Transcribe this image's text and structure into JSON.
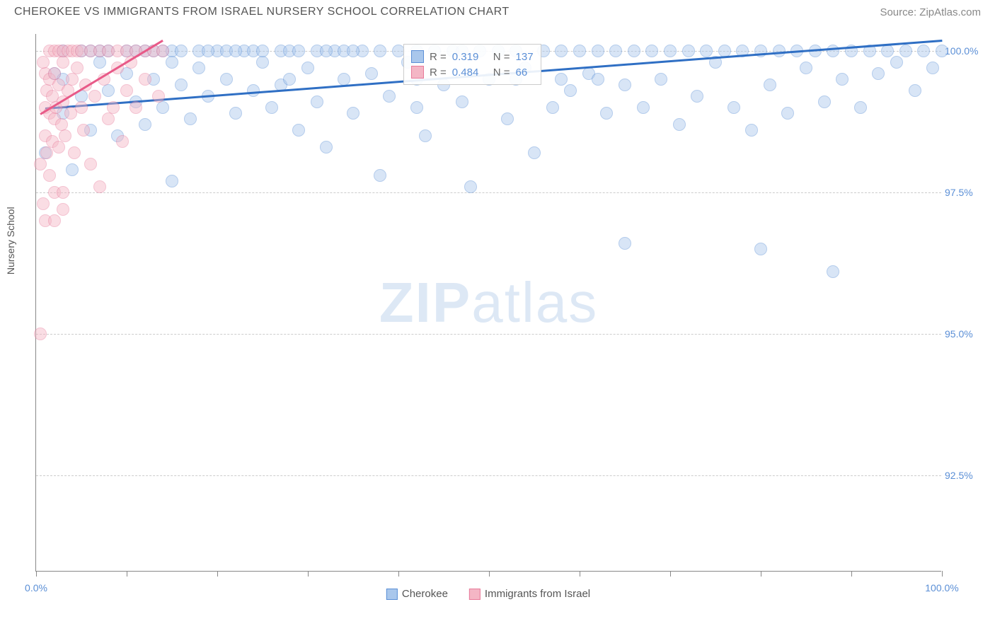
{
  "title": "CHEROKEE VS IMMIGRANTS FROM ISRAEL NURSERY SCHOOL CORRELATION CHART",
  "source": "Source: ZipAtlas.com",
  "watermark_bold": "ZIP",
  "watermark_light": "atlas",
  "y_axis_label": "Nursery School",
  "chart": {
    "type": "scatter",
    "xlim": [
      0,
      100
    ],
    "ylim": [
      90.8,
      100.3
    ],
    "ytick_values": [
      92.5,
      95.0,
      97.5,
      100.0
    ],
    "ytick_labels": [
      "92.5%",
      "95.0%",
      "97.5%",
      "100.0%"
    ],
    "xtick_positions": [
      0,
      10,
      20,
      30,
      40,
      50,
      60,
      70,
      80,
      90,
      100
    ],
    "xtick_labels": {
      "0": "0.0%",
      "100": "100.0%"
    },
    "background_color": "#ffffff",
    "grid_color": "#cccccc",
    "point_radius": 9,
    "point_stroke_width": 1.5
  },
  "series": [
    {
      "name": "Cherokee",
      "fill_color": "#a9c7ec",
      "stroke_color": "#5b8fd6",
      "fill_opacity": 0.45,
      "R": "0.319",
      "N": "137",
      "trend": {
        "x1": 1,
        "y1": 99.0,
        "x2": 100,
        "y2": 100.2,
        "color": "#2f6fc4",
        "width": 3
      },
      "points": [
        [
          1,
          98.2
        ],
        [
          2,
          99.6
        ],
        [
          3,
          98.9
        ],
        [
          3,
          100
        ],
        [
          4,
          97.9
        ],
        [
          5,
          99.2
        ],
        [
          5,
          100
        ],
        [
          6,
          98.6
        ],
        [
          7,
          99.8
        ],
        [
          7,
          100
        ],
        [
          8,
          99.3
        ],
        [
          8,
          100
        ],
        [
          9,
          98.5
        ],
        [
          10,
          99.6
        ],
        [
          10,
          100
        ],
        [
          11,
          99.1
        ],
        [
          12,
          98.7
        ],
        [
          12,
          100
        ],
        [
          13,
          99.5
        ],
        [
          13,
          100
        ],
        [
          14,
          99.0
        ],
        [
          14,
          100
        ],
        [
          15,
          97.7
        ],
        [
          15,
          100
        ],
        [
          16,
          99.4
        ],
        [
          16,
          100
        ],
        [
          17,
          98.8
        ],
        [
          18,
          99.7
        ],
        [
          18,
          100
        ],
        [
          19,
          99.2
        ],
        [
          20,
          100
        ],
        [
          21,
          99.5
        ],
        [
          21,
          100
        ],
        [
          22,
          98.9
        ],
        [
          23,
          100
        ],
        [
          24,
          99.3
        ],
        [
          24,
          100
        ],
        [
          25,
          99.8
        ],
        [
          26,
          99.0
        ],
        [
          27,
          100
        ],
        [
          27,
          99.4
        ],
        [
          28,
          100
        ],
        [
          29,
          98.6
        ],
        [
          29,
          100
        ],
        [
          30,
          99.7
        ],
        [
          31,
          99.1
        ],
        [
          31,
          100
        ],
        [
          32,
          98.3
        ],
        [
          33,
          100
        ],
        [
          34,
          99.5
        ],
        [
          34,
          100
        ],
        [
          35,
          98.9
        ],
        [
          36,
          100
        ],
        [
          37,
          99.6
        ],
        [
          38,
          97.8
        ],
        [
          38,
          100
        ],
        [
          39,
          99.2
        ],
        [
          40,
          100
        ],
        [
          41,
          99.8
        ],
        [
          42,
          99.0
        ],
        [
          42,
          100
        ],
        [
          43,
          98.5
        ],
        [
          44,
          100
        ],
        [
          45,
          99.4
        ],
        [
          46,
          100
        ],
        [
          47,
          99.1
        ],
        [
          48,
          97.6
        ],
        [
          49,
          100
        ],
        [
          50,
          99.5
        ],
        [
          51,
          100
        ],
        [
          52,
          98.8
        ],
        [
          53,
          100
        ],
        [
          54,
          99.7
        ],
        [
          55,
          98.2
        ],
        [
          56,
          100
        ],
        [
          57,
          99.0
        ],
        [
          58,
          100
        ],
        [
          59,
          99.3
        ],
        [
          60,
          100
        ],
        [
          61,
          99.6
        ],
        [
          62,
          100
        ],
        [
          63,
          98.9
        ],
        [
          64,
          100
        ],
        [
          65,
          99.4
        ],
        [
          65,
          96.6
        ],
        [
          66,
          100
        ],
        [
          67,
          99.0
        ],
        [
          68,
          100
        ],
        [
          69,
          99.5
        ],
        [
          70,
          100
        ],
        [
          71,
          98.7
        ],
        [
          72,
          100
        ],
        [
          73,
          99.2
        ],
        [
          74,
          100
        ],
        [
          75,
          99.8
        ],
        [
          76,
          100
        ],
        [
          77,
          99.0
        ],
        [
          78,
          100
        ],
        [
          79,
          98.6
        ],
        [
          80,
          100
        ],
        [
          80,
          96.5
        ],
        [
          81,
          99.4
        ],
        [
          82,
          100
        ],
        [
          83,
          98.9
        ],
        [
          84,
          100
        ],
        [
          85,
          99.7
        ],
        [
          86,
          100
        ],
        [
          87,
          99.1
        ],
        [
          88,
          100
        ],
        [
          88,
          96.1
        ],
        [
          89,
          99.5
        ],
        [
          90,
          100
        ],
        [
          91,
          99.0
        ],
        [
          92,
          100
        ],
        [
          93,
          99.6
        ],
        [
          94,
          100
        ],
        [
          95,
          99.8
        ],
        [
          96,
          100
        ],
        [
          97,
          99.3
        ],
        [
          98,
          100
        ],
        [
          99,
          99.7
        ],
        [
          100,
          100
        ],
        [
          3,
          99.5
        ],
        [
          6,
          100
        ],
        [
          11,
          100
        ],
        [
          15,
          99.8
        ],
        [
          19,
          100
        ],
        [
          22,
          100
        ],
        [
          25,
          100
        ],
        [
          28,
          99.5
        ],
        [
          32,
          100
        ],
        [
          35,
          100
        ],
        [
          42,
          99.5
        ],
        [
          47,
          100
        ],
        [
          53,
          99.5
        ],
        [
          58,
          99.5
        ],
        [
          62,
          99.5
        ]
      ]
    },
    {
      "name": "Immigrants from Israel",
      "fill_color": "#f4b6c5",
      "stroke_color": "#e87a9a",
      "fill_opacity": 0.45,
      "R": "0.484",
      "N": "66",
      "trend": {
        "x1": 0.5,
        "y1": 98.9,
        "x2": 14,
        "y2": 100.2,
        "color": "#e85a88",
        "width": 3
      },
      "points": [
        [
          0.5,
          95.0
        ],
        [
          0.5,
          98.0
        ],
        [
          0.8,
          97.3
        ],
        [
          1,
          98.5
        ],
        [
          1,
          99.0
        ],
        [
          1,
          99.6
        ],
        [
          1.2,
          98.2
        ],
        [
          1.2,
          99.3
        ],
        [
          1.5,
          97.8
        ],
        [
          1.5,
          98.9
        ],
        [
          1.5,
          99.5
        ],
        [
          1.5,
          100
        ],
        [
          1.8,
          98.4
        ],
        [
          1.8,
          99.2
        ],
        [
          2,
          97.5
        ],
        [
          2,
          98.8
        ],
        [
          2,
          99.6
        ],
        [
          2,
          100
        ],
        [
          2.2,
          99.0
        ],
        [
          2.5,
          98.3
        ],
        [
          2.5,
          99.4
        ],
        [
          2.5,
          100
        ],
        [
          2.8,
          98.7
        ],
        [
          3,
          97.2
        ],
        [
          3,
          99.1
        ],
        [
          3,
          99.8
        ],
        [
          3,
          100
        ],
        [
          3.2,
          98.5
        ],
        [
          3.5,
          99.3
        ],
        [
          3.5,
          100
        ],
        [
          3.8,
          98.9
        ],
        [
          4,
          99.5
        ],
        [
          4,
          100
        ],
        [
          4.2,
          98.2
        ],
        [
          4.5,
          99.7
        ],
        [
          4.5,
          100
        ],
        [
          5,
          99.0
        ],
        [
          5,
          100
        ],
        [
          5.2,
          98.6
        ],
        [
          5.5,
          99.4
        ],
        [
          6,
          98.0
        ],
        [
          6,
          100
        ],
        [
          6.5,
          99.2
        ],
        [
          7,
          97.6
        ],
        [
          7,
          100
        ],
        [
          7.5,
          99.5
        ],
        [
          8,
          98.8
        ],
        [
          8,
          100
        ],
        [
          8.5,
          99.0
        ],
        [
          9,
          99.7
        ],
        [
          9,
          100
        ],
        [
          9.5,
          98.4
        ],
        [
          10,
          99.3
        ],
        [
          10,
          100
        ],
        [
          10.5,
          99.8
        ],
        [
          11,
          99.0
        ],
        [
          11,
          100
        ],
        [
          12,
          99.5
        ],
        [
          12,
          100
        ],
        [
          13,
          100
        ],
        [
          13.5,
          99.2
        ],
        [
          14,
          100
        ],
        [
          1,
          97.0
        ],
        [
          2,
          97.0
        ],
        [
          3,
          97.5
        ],
        [
          0.8,
          99.8
        ]
      ]
    }
  ],
  "stats_legend": {
    "r_label": "R  =",
    "n_label": "N  ="
  },
  "bottom_legend": {
    "items": [
      "Cherokee",
      "Immigrants from Israel"
    ]
  }
}
